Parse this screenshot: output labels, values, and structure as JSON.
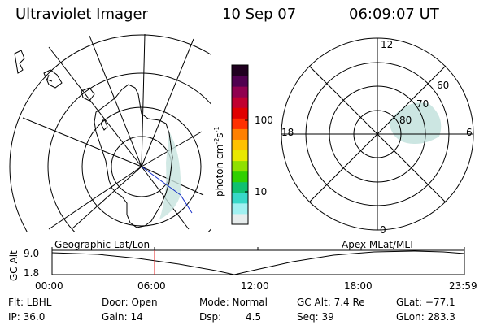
{
  "header": {
    "instrument": "Ultraviolet Imager",
    "date": "10 Sep 07",
    "time": "06:09:07 UT"
  },
  "colorbar": {
    "unit_prefix": "photon cm",
    "unit_exp1": "-2",
    "unit_mid": "s",
    "unit_exp2": "-1",
    "tick_100": "100",
    "tick_10": "10",
    "colors": [
      "#e6ecec",
      "#a0f0f0",
      "#38d8c8",
      "#10c070",
      "#30d000",
      "#90e000",
      "#e8e800",
      "#ffc000",
      "#ff8000",
      "#ff3000",
      "#e00000",
      "#c00030",
      "#900050",
      "#500050",
      "#200020"
    ]
  },
  "polar_plot": {
    "mlt_labels": {
      "top": "12",
      "left": "18",
      "right": "6",
      "bottom": "0"
    },
    "lat_labels": [
      "60",
      "70",
      "80"
    ],
    "colors": {
      "aurora": "#c7e3df"
    }
  },
  "timeline": {
    "left_title": "Geographic Lat/Lon",
    "right_title": "Apex MLat/MLT",
    "y_axis_label": "GC Alt",
    "y_max": "9.0",
    "y_min": "1.8",
    "time_ticks": [
      "00:00",
      "06:00",
      "12:00",
      "18:00",
      "23:59"
    ],
    "colors": {
      "cursor": "#e02020"
    }
  },
  "footer": {
    "flt": "Flt: LBHL",
    "ip": "IP: 36.0",
    "door": "Door: Open",
    "gain": "Gain: 14",
    "mode": "Mode: Normal",
    "dsp_label": "Dsp:",
    "dsp_value": "4.5",
    "gc_alt": "GC Alt: 7.4 Re",
    "seq": "Seq: 39",
    "glat": "GLat: −77.1",
    "glon": "GLon: 283.3"
  }
}
